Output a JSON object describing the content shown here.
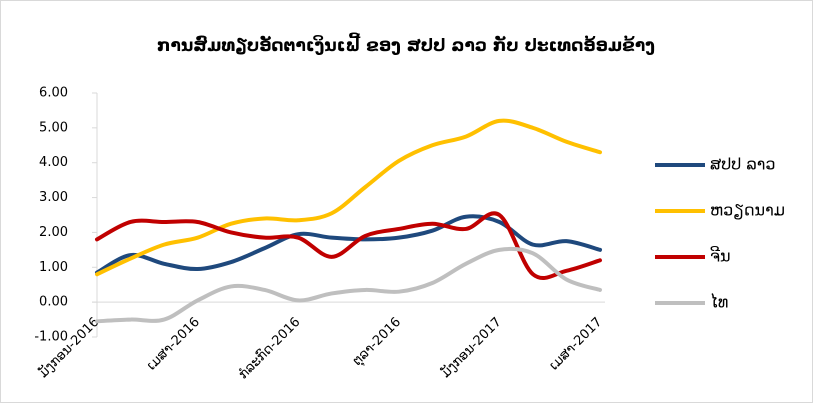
{
  "chart_data": {
    "type": "line",
    "title": "ການສົມທຽບອັດຕາເງິນເຟີ້ ຂອງ ສປປ ລາວ ກັບ ປະເທດອ້ອມຂ້າງ",
    "categories": [
      "ມັງກອນ-2016",
      null,
      null,
      "ເມສາ-2016",
      null,
      null,
      "ກໍລະກົດ-2016",
      null,
      null,
      "ຕຸລາ-2016",
      null,
      null,
      "ມັງກອນ-2017",
      null,
      null,
      "ເມສາ-2017"
    ],
    "series": [
      {
        "name": "ສປປ ລາວ",
        "color": "#1f497d",
        "values": [
          0.85,
          1.35,
          1.1,
          0.95,
          1.15,
          1.55,
          1.95,
          1.85,
          1.8,
          1.85,
          2.05,
          2.45,
          2.3,
          1.65,
          1.75,
          1.5
        ]
      },
      {
        "name": "ຫວຽດນາມ",
        "color": "#ffc000",
        "values": [
          0.8,
          1.25,
          1.65,
          1.85,
          2.25,
          2.4,
          2.35,
          2.55,
          3.3,
          4.05,
          4.5,
          4.75,
          5.2,
          5.0,
          4.6,
          4.3
        ]
      },
      {
        "name": "ຈີນ",
        "color": "#c00000",
        "values": [
          1.8,
          2.3,
          2.3,
          2.3,
          2.0,
          1.85,
          1.85,
          1.3,
          1.9,
          2.1,
          2.25,
          2.1,
          2.5,
          0.8,
          0.9,
          1.2
        ]
      },
      {
        "name": "ໄທ",
        "color": "#bfbfbf",
        "values": [
          -0.55,
          -0.5,
          -0.5,
          0.05,
          0.45,
          0.35,
          0.05,
          0.25,
          0.35,
          0.3,
          0.55,
          1.1,
          1.5,
          1.4,
          0.65,
          0.35
        ]
      }
    ],
    "ylim": [
      -1,
      6
    ],
    "yticks": [
      {
        "value": -1,
        "label": "-1.00"
      },
      {
        "value": 0,
        "label": "0.00"
      },
      {
        "value": 1,
        "label": "1.00"
      },
      {
        "value": 2,
        "label": "2.00"
      },
      {
        "value": 3,
        "label": "3.00"
      },
      {
        "value": 4,
        "label": "4.00"
      },
      {
        "value": 5,
        "label": "5.00"
      },
      {
        "value": 6,
        "label": "6.00"
      }
    ],
    "legend": "right"
  }
}
